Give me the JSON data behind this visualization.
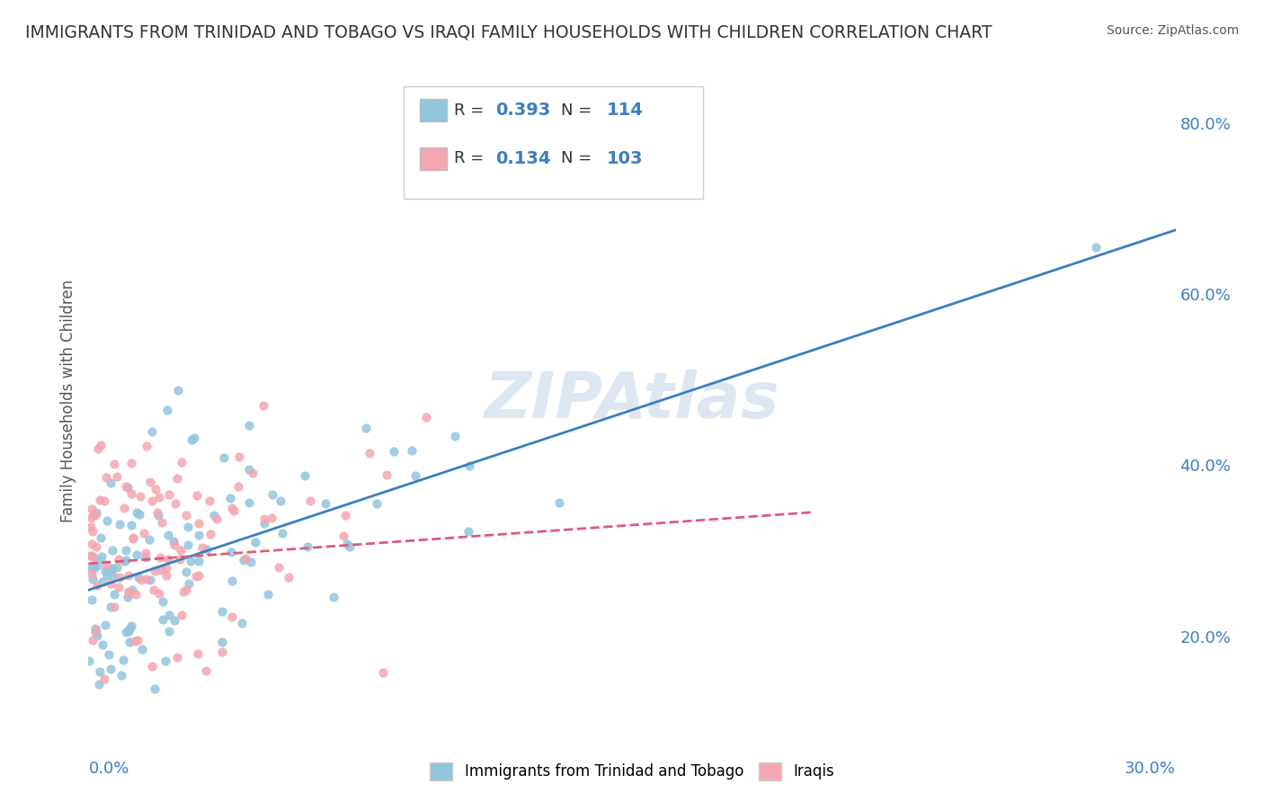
{
  "title": "IMMIGRANTS FROM TRINIDAD AND TOBAGO VS IRAQI FAMILY HOUSEHOLDS WITH CHILDREN CORRELATION CHART",
  "source": "Source: ZipAtlas.com",
  "xlabel": "",
  "ylabel": "Family Households with Children",
  "legend1_label": "Immigrants from Trinidad and Tobago",
  "legend2_label": "Iraqis",
  "R1": 0.393,
  "N1": 114,
  "R2": 0.134,
  "N2": 103,
  "color1": "#92c5de",
  "color2": "#f4a6b0",
  "line_color1": "#3a7fc1",
  "line_color2": "#e05a7a",
  "xlim": [
    0.0,
    0.3
  ],
  "ylim": [
    0.1,
    0.85
  ],
  "ytick_right_labels": [
    "20.0%",
    "40.0%",
    "60.0%",
    "80.0%"
  ],
  "ytick_right_values": [
    0.2,
    0.4,
    0.6,
    0.8
  ],
  "watermark": "ZIPAtlas",
  "watermark_color": "#c8d8e8",
  "background_color": "#ffffff",
  "grid_color": "#e0e0e0"
}
